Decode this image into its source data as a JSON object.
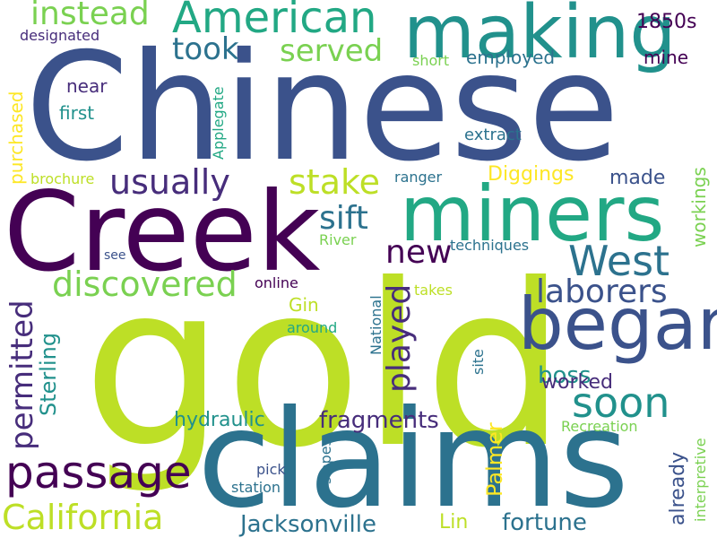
{
  "words": [
    {
      "text": "gold",
      "color": "#bddf26"
    },
    {
      "text": "Chinese",
      "color": "#3b528b"
    },
    {
      "text": "claims",
      "color": "#2c728e"
    },
    {
      "text": "Creek",
      "color": "#440154"
    },
    {
      "text": "miners",
      "color": "#22a884"
    },
    {
      "text": "making",
      "color": "#21918c"
    },
    {
      "text": "began",
      "color": "#3b528b"
    },
    {
      "text": "American",
      "color": "#22a884"
    },
    {
      "text": "passage",
      "color": "#440154"
    },
    {
      "text": "California",
      "color": "#bddf26"
    },
    {
      "text": "West",
      "color": "#2c728e"
    },
    {
      "text": "soon",
      "color": "#21918c"
    },
    {
      "text": "discovered",
      "color": "#7ad151"
    },
    {
      "text": "instead",
      "color": "#7ad151"
    },
    {
      "text": "usually",
      "color": "#472d7b"
    },
    {
      "text": "took",
      "color": "#2c728e"
    },
    {
      "text": "served",
      "color": "#7ad151"
    },
    {
      "text": "stake",
      "color": "#bddf26"
    },
    {
      "text": "sift",
      "color": "#2c728e"
    },
    {
      "text": "new",
      "color": "#440154"
    },
    {
      "text": "laborers",
      "color": "#3b528b"
    },
    {
      "text": "played",
      "color": "#472d7b"
    },
    {
      "text": "permitted",
      "color": "#472d7b"
    },
    {
      "text": "Jacksonville",
      "color": "#2c728e"
    },
    {
      "text": "fragments",
      "color": "#472d7b"
    },
    {
      "text": "fortune",
      "color": "#2c728e"
    },
    {
      "text": "hydraulic",
      "color": "#21918c"
    },
    {
      "text": "Sterling",
      "color": "#21918c"
    },
    {
      "text": "Palmer",
      "color": "#fde725"
    },
    {
      "text": "Lin",
      "color": "#bddf26"
    },
    {
      "text": "boss",
      "color": "#21918c"
    },
    {
      "text": "worked",
      "color": "#472d7b"
    },
    {
      "text": "already",
      "color": "#3b528b"
    },
    {
      "text": "purchased",
      "color": "#fde725"
    },
    {
      "text": "Diggings",
      "color": "#fde725"
    },
    {
      "text": "made",
      "color": "#3b528b"
    },
    {
      "text": "workings",
      "color": "#7ad151"
    },
    {
      "text": "1850s",
      "color": "#440154"
    },
    {
      "text": "mine",
      "color": "#440154"
    },
    {
      "text": "employed",
      "color": "#2c728e"
    },
    {
      "text": "near",
      "color": "#472d7b"
    },
    {
      "text": "first",
      "color": "#21918c"
    },
    {
      "text": "Gin",
      "color": "#bddf26"
    },
    {
      "text": "extract",
      "color": "#2c728e"
    },
    {
      "text": "Applegate",
      "color": "#22a884"
    },
    {
      "text": "designated",
      "color": "#472d7b"
    },
    {
      "text": "short",
      "color": "#7ad151"
    },
    {
      "text": "brochure",
      "color": "#bddf26"
    },
    {
      "text": "ranger",
      "color": "#2c728e"
    },
    {
      "text": "River",
      "color": "#7ad151"
    },
    {
      "text": "techniques",
      "color": "#2c728e"
    },
    {
      "text": "see",
      "color": "#3b528b"
    },
    {
      "text": "online",
      "color": "#440154"
    },
    {
      "text": "takes",
      "color": "#bddf26"
    },
    {
      "text": "around",
      "color": "#22a884"
    },
    {
      "text": "National",
      "color": "#2c728e"
    },
    {
      "text": "site",
      "color": "#2c728e"
    },
    {
      "text": "Recreation",
      "color": "#7ad151"
    },
    {
      "text": "interpretive",
      "color": "#7ad151"
    },
    {
      "text": "pick",
      "color": "#3b528b"
    },
    {
      "text": "station",
      "color": "#2c728e"
    },
    {
      "text": "slopes",
      "color": "#2c728e"
    }
  ]
}
